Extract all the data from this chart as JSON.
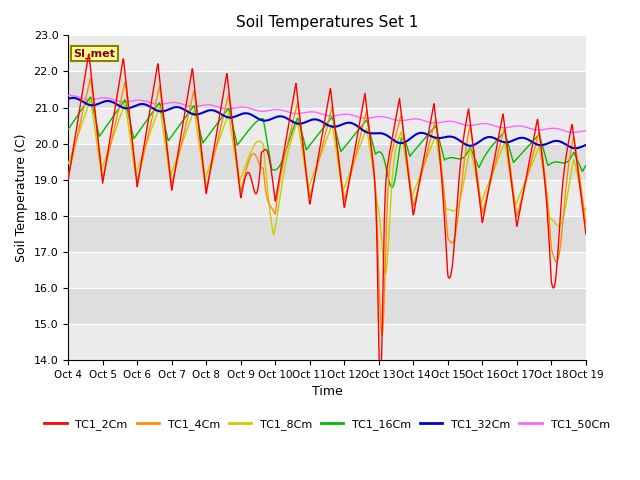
{
  "title": "Soil Temperatures Set 1",
  "xlabel": "Time",
  "ylabel": "Soil Temperature (C)",
  "ylim": [
    14.0,
    23.0
  ],
  "yticks": [
    14.0,
    15.0,
    16.0,
    17.0,
    18.0,
    19.0,
    20.0,
    21.0,
    22.0,
    23.0
  ],
  "xtick_labels": [
    "Oct 4",
    "Oct 5",
    "Oct 6",
    "Oct 7",
    "Oct 8",
    "Oct 9",
    "Oct 10",
    "Oct 11",
    "Oct 12",
    "Oct 13",
    "Oct 14",
    "Oct 15",
    "Oct 16",
    "Oct 17",
    "Oct 18",
    "Oct 19"
  ],
  "annotation_text": "SI_met",
  "annotation_color": "#8B0000",
  "annotation_bg": "#FFFF99",
  "annotation_border": "#8B8000",
  "lines": {
    "TC1_2Cm": {
      "color": "#FF0000",
      "lw": 1.0
    },
    "TC1_4Cm": {
      "color": "#FF8C00",
      "lw": 1.0
    },
    "TC1_8Cm": {
      "color": "#CCCC00",
      "lw": 1.0
    },
    "TC1_16Cm": {
      "color": "#00BB00",
      "lw": 1.0
    },
    "TC1_32Cm": {
      "color": "#0000CC",
      "lw": 1.5
    },
    "TC1_50Cm": {
      "color": "#FF66FF",
      "lw": 1.0
    }
  },
  "bg_color": "#FFFFFF",
  "band_light": "#EBEBEB",
  "band_dark": "#DEDEDE",
  "n_points": 1440
}
